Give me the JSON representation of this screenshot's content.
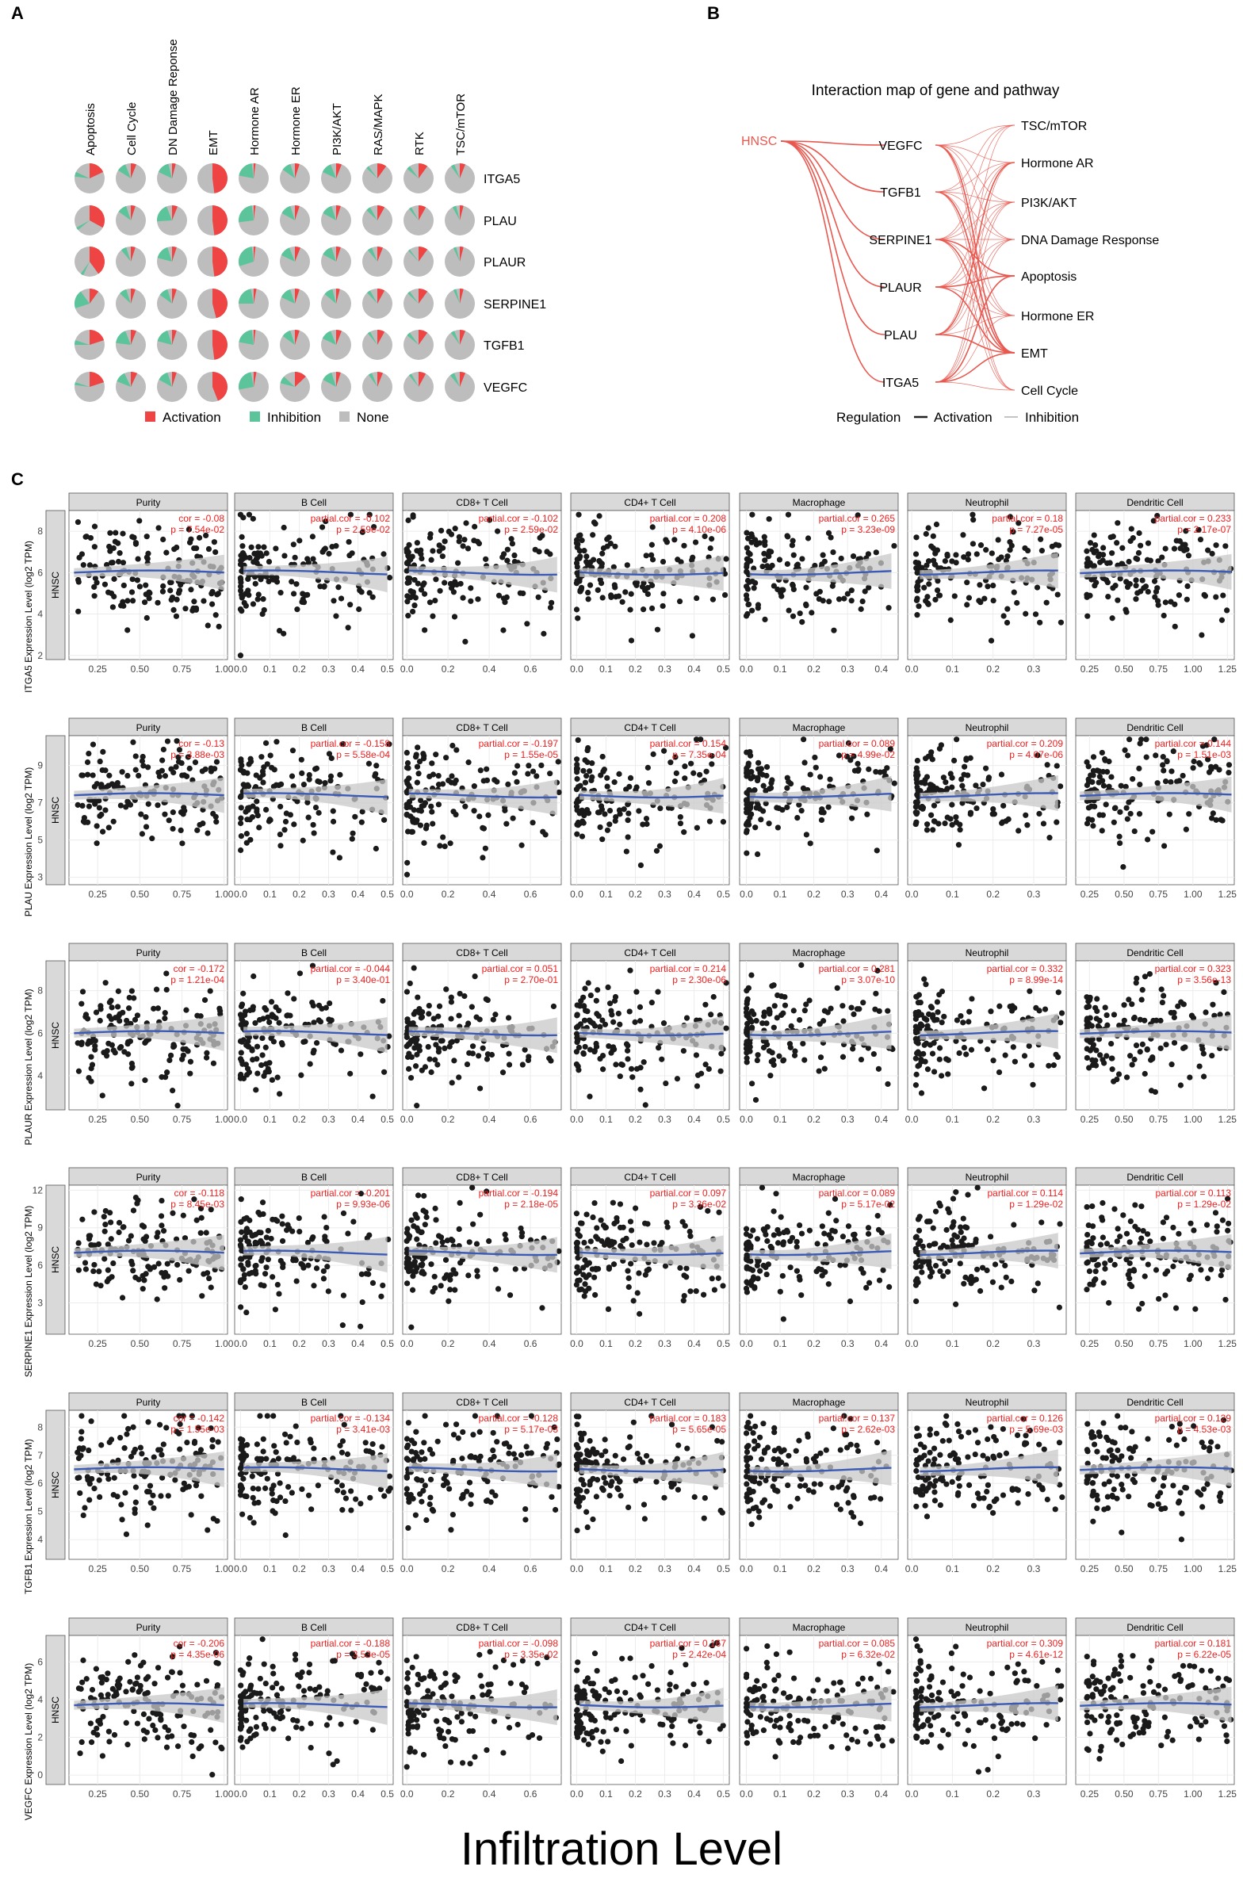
{
  "panel_labels": {
    "a": "A",
    "b": "B",
    "c": "C"
  },
  "chart_data": [
    {
      "type": "pie",
      "panel": "A",
      "pathways": [
        "Apoptosis",
        "Cell Cycle",
        "DN Damage Reponse",
        "EMT",
        "Hormone AR",
        "Hormone ER",
        "PI3K/AKT",
        "RAS/MAPK",
        "RTK",
        "TSC/mTOR"
      ],
      "genes": [
        "ITGA5",
        "PLAU",
        "PLAUR",
        "SERPINE1",
        "TGFB1",
        "VEGFC"
      ],
      "legend": {
        "activation": "Activation",
        "inhibition": "Inhibition",
        "none": "None"
      },
      "colors": {
        "activation": "#ee4444",
        "inhibition": "#5cc49a",
        "none": "#bdbdbd"
      },
      "slices": [
        [
          [
            0.18,
            0.05
          ],
          [
            0.06,
            0.1
          ],
          [
            0.04,
            0.14
          ],
          [
            0.48,
            0.0
          ],
          [
            0.02,
            0.2
          ],
          [
            0.05,
            0.1
          ],
          [
            0.06,
            0.12
          ],
          [
            0.1,
            0.03
          ],
          [
            0.1,
            0.04
          ],
          [
            0.06,
            0.04
          ]
        ],
        [
          [
            0.33,
            0.03
          ],
          [
            0.05,
            0.1
          ],
          [
            0.06,
            0.2
          ],
          [
            0.48,
            0.0
          ],
          [
            0.02,
            0.25
          ],
          [
            0.05,
            0.12
          ],
          [
            0.05,
            0.12
          ],
          [
            0.08,
            0.05
          ],
          [
            0.08,
            0.03
          ],
          [
            0.04,
            0.04
          ]
        ],
        [
          [
            0.4,
            0.03
          ],
          [
            0.05,
            0.06
          ],
          [
            0.05,
            0.16
          ],
          [
            0.48,
            0.0
          ],
          [
            0.02,
            0.28
          ],
          [
            0.06,
            0.12
          ],
          [
            0.05,
            0.12
          ],
          [
            0.06,
            0.05
          ],
          [
            0.1,
            0.02
          ],
          [
            0.04,
            0.03
          ]
        ],
        [
          [
            0.1,
            0.2
          ],
          [
            0.05,
            0.08
          ],
          [
            0.05,
            0.1
          ],
          [
            0.46,
            0.0
          ],
          [
            0.03,
            0.22
          ],
          [
            0.05,
            0.13
          ],
          [
            0.04,
            0.1
          ],
          [
            0.08,
            0.04
          ],
          [
            0.1,
            0.03
          ],
          [
            0.04,
            0.03
          ]
        ],
        [
          [
            0.2,
            0.05
          ],
          [
            0.06,
            0.17
          ],
          [
            0.05,
            0.16
          ],
          [
            0.48,
            0.0
          ],
          [
            0.02,
            0.2
          ],
          [
            0.05,
            0.1
          ],
          [
            0.06,
            0.12
          ],
          [
            0.08,
            0.03
          ],
          [
            0.1,
            0.04
          ],
          [
            0.06,
            0.04
          ]
        ],
        [
          [
            0.2,
            0.03
          ],
          [
            0.07,
            0.12
          ],
          [
            0.05,
            0.12
          ],
          [
            0.44,
            0.0
          ],
          [
            0.03,
            0.25
          ],
          [
            0.13,
            0.08
          ],
          [
            0.05,
            0.12
          ],
          [
            0.06,
            0.04
          ],
          [
            0.08,
            0.03
          ],
          [
            0.06,
            0.05
          ]
        ]
      ]
    },
    {
      "type": "network",
      "panel": "B",
      "title": "Interaction map of gene and pathway",
      "cancer": "HNSC",
      "genes": [
        "VEGFC",
        "TGFB1",
        "SERPINE1",
        "PLAUR",
        "PLAU",
        "ITGA5"
      ],
      "pathways": [
        "TSC/mTOR",
        "Hormone AR",
        "PI3K/AKT",
        "DNA Damage Response",
        "Apoptosis",
        "Hormone ER",
        "EMT",
        "Cell Cycle"
      ],
      "legend": {
        "title": "Regulation",
        "activation": "Activation",
        "inhibition": "Inhibition"
      },
      "edge_color": "#e8584f",
      "activation_edges": [
        [
          0,
          6
        ],
        [
          1,
          6
        ],
        [
          2,
          6
        ],
        [
          3,
          6
        ],
        [
          4,
          6
        ],
        [
          5,
          6
        ],
        [
          3,
          4
        ],
        [
          2,
          4
        ],
        [
          5,
          4
        ],
        [
          4,
          1
        ]
      ],
      "inhibition_edges": [
        [
          0,
          0
        ],
        [
          0,
          1
        ],
        [
          0,
          2
        ],
        [
          0,
          3
        ],
        [
          0,
          5
        ],
        [
          0,
          7
        ],
        [
          1,
          0
        ],
        [
          1,
          1
        ],
        [
          1,
          2
        ],
        [
          1,
          3
        ],
        [
          1,
          5
        ],
        [
          1,
          7
        ],
        [
          2,
          0
        ],
        [
          2,
          1
        ],
        [
          2,
          2
        ],
        [
          2,
          3
        ],
        [
          2,
          5
        ],
        [
          2,
          7
        ],
        [
          3,
          1
        ],
        [
          3,
          2
        ],
        [
          3,
          3
        ],
        [
          3,
          5
        ],
        [
          4,
          0
        ],
        [
          4,
          2
        ],
        [
          4,
          3
        ],
        [
          4,
          5
        ],
        [
          5,
          1
        ],
        [
          5,
          2
        ],
        [
          5,
          3
        ],
        [
          5,
          5
        ],
        [
          5,
          7
        ]
      ]
    },
    {
      "type": "scatter",
      "panel": "C",
      "cancer": "HNSC",
      "xlabel": "Infiltration Level",
      "cells": [
        "Purity",
        "B Cell",
        "CD8+ T Cell",
        "CD4+ T Cell",
        "Macrophage",
        "Neutrophil",
        "Dendritic Cell"
      ],
      "x_ranges": [
        [
          0.08,
          1.02
        ],
        [
          -0.02,
          0.52
        ],
        [
          -0.02,
          0.75
        ],
        [
          -0.02,
          0.52
        ],
        [
          -0.02,
          0.45
        ],
        [
          -0.01,
          0.38
        ],
        [
          0.15,
          1.3
        ]
      ],
      "x_ticks": [
        [
          "0.25",
          "0.50",
          "0.75",
          "1.00"
        ],
        [
          "0.0",
          "0.1",
          "0.2",
          "0.3",
          "0.4",
          "0.5"
        ],
        [
          "0.0",
          "0.2",
          "0.4",
          "0.6"
        ],
        [
          "0.0",
          "0.1",
          "0.2",
          "0.3",
          "0.4",
          "0.5"
        ],
        [
          "0.0",
          "0.1",
          "0.2",
          "0.3",
          "0.4"
        ],
        [
          "0.0",
          "0.1",
          "0.2",
          "0.3"
        ],
        [
          "0.25",
          "0.50",
          "0.75",
          "1.00",
          "1.25"
        ]
      ],
      "point_color": "#1a1a1a",
      "fit_color": "#3b5bb5",
      "band_color": "#c8c8c8",
      "stat_color": "#ee2020",
      "rows": [
        {
          "gene": "ITGA5",
          "ylabel": "ITGA5 Expression Level (log2 TPM)",
          "y_ticks": [
            "2",
            "4",
            "6",
            "8"
          ],
          "y_range": [
            1.8,
            9
          ],
          "center": 6,
          "stats": [
            [
              "cor = -0.08",
              "p = 7.54e-02"
            ],
            [
              "partial.cor = -0.102",
              "p = 2.59e-02"
            ],
            [
              "partial.cor = -0.102",
              "p = 2.59e-02"
            ],
            [
              "partial.cor = 0.208",
              "p = 4.10e-06"
            ],
            [
              "partial.cor = 0.265",
              "p = 3.23e-09"
            ],
            [
              "partial.cor = 0.18",
              "p = 7.27e-05"
            ],
            [
              "partial.cor = 0.233",
              "p = 2.17e-07"
            ]
          ]
        },
        {
          "gene": "PLAU",
          "ylabel": "PLAU Expression Level (log2 TPM)",
          "y_ticks": [
            "3",
            "5",
            "7",
            "9"
          ],
          "y_range": [
            2.6,
            10.6
          ],
          "center": 7.4,
          "stats": [
            [
              "cor = -0.13",
              "p = 3.88e-03"
            ],
            [
              "partial.cor = -0.158",
              "p = 5.58e-04"
            ],
            [
              "partial.cor = -0.197",
              "p = 1.55e-05"
            ],
            [
              "partial.cor = 0.154",
              "p = 7.35e-04"
            ],
            [
              "partial.cor = 0.089",
              "p = 4.99e-02"
            ],
            [
              "partial.cor = 0.209",
              "p = 4.07e-06"
            ],
            [
              "partial.cor = 0.144",
              "p = 1.51e-03"
            ]
          ]
        },
        {
          "gene": "PLAUR",
          "ylabel": "PLAUR Expression Level (log2 TPM)",
          "y_ticks": [
            "4",
            "6",
            "8"
          ],
          "y_range": [
            2.4,
            9.4
          ],
          "center": 6,
          "stats": [
            [
              "cor = -0.172",
              "p = 1.21e-04"
            ],
            [
              "partial.cor = -0.044",
              "p = 3.40e-01"
            ],
            [
              "partial.cor = 0.051",
              "p = 2.70e-01"
            ],
            [
              "partial.cor = 0.214",
              "p = 2.30e-06"
            ],
            [
              "partial.cor = 0.281",
              "p = 3.07e-10"
            ],
            [
              "partial.cor = 0.332",
              "p = 8.99e-14"
            ],
            [
              "partial.cor = 0.323",
              "p = 3.56e-13"
            ]
          ]
        },
        {
          "gene": "SERPINE1",
          "ylabel": "SERPINE1 Expression Level (log2 TPM)",
          "y_ticks": [
            "3",
            "6",
            "9",
            "12"
          ],
          "y_range": [
            0.5,
            12.4
          ],
          "center": 7,
          "stats": [
            [
              "cor = -0.118",
              "p = 8.45e-03"
            ],
            [
              "partial.cor = -0.201",
              "p = 9.93e-06"
            ],
            [
              "partial.cor = -0.194",
              "p = 2.18e-05"
            ],
            [
              "partial.cor = 0.097",
              "p = 3.36e-02"
            ],
            [
              "partial.cor = 0.089",
              "p = 5.17e-02"
            ],
            [
              "partial.cor = 0.114",
              "p = 1.29e-02"
            ],
            [
              "partial.cor = 0.113",
              "p = 1.29e-02"
            ]
          ]
        },
        {
          "gene": "TGFB1",
          "ylabel": "TGFB1 Expression Level (log2 TPM)",
          "y_ticks": [
            "4",
            "5",
            "6",
            "7",
            "8"
          ],
          "y_range": [
            3.3,
            8.6
          ],
          "center": 6.5,
          "stats": [
            [
              "cor = -0.142",
              "p = 1.55e-03"
            ],
            [
              "partial.cor = -0.134",
              "p = 3.41e-03"
            ],
            [
              "partial.cor = -0.128",
              "p = 5.17e-03"
            ],
            [
              "partial.cor = 0.183",
              "p = 5.65e-05"
            ],
            [
              "partial.cor = 0.137",
              "p = 2.62e-03"
            ],
            [
              "partial.cor = 0.126",
              "p = 5.69e-03"
            ],
            [
              "partial.cor = 0.129",
              "p = 4.53e-03"
            ]
          ]
        },
        {
          "gene": "VEGFC",
          "ylabel": "VEGFC Expression Level (log2 TPM)",
          "y_ticks": [
            "0",
            "2",
            "4",
            "6"
          ],
          "y_range": [
            -0.5,
            7.4
          ],
          "center": 3.7,
          "stats": [
            [
              "cor = -0.206",
              "p = 4.35e-06"
            ],
            [
              "partial.cor = -0.188",
              "p = 3.53e-05"
            ],
            [
              "partial.cor = -0.098",
              "p = 3.35e-02"
            ],
            [
              "partial.cor = 0.167",
              "p = 2.42e-04"
            ],
            [
              "partial.cor = 0.085",
              "p = 6.32e-02"
            ],
            [
              "partial.cor = 0.309",
              "p = 4.61e-12"
            ],
            [
              "partial.cor = 0.181",
              "p = 6.22e-05"
            ]
          ]
        }
      ]
    }
  ]
}
